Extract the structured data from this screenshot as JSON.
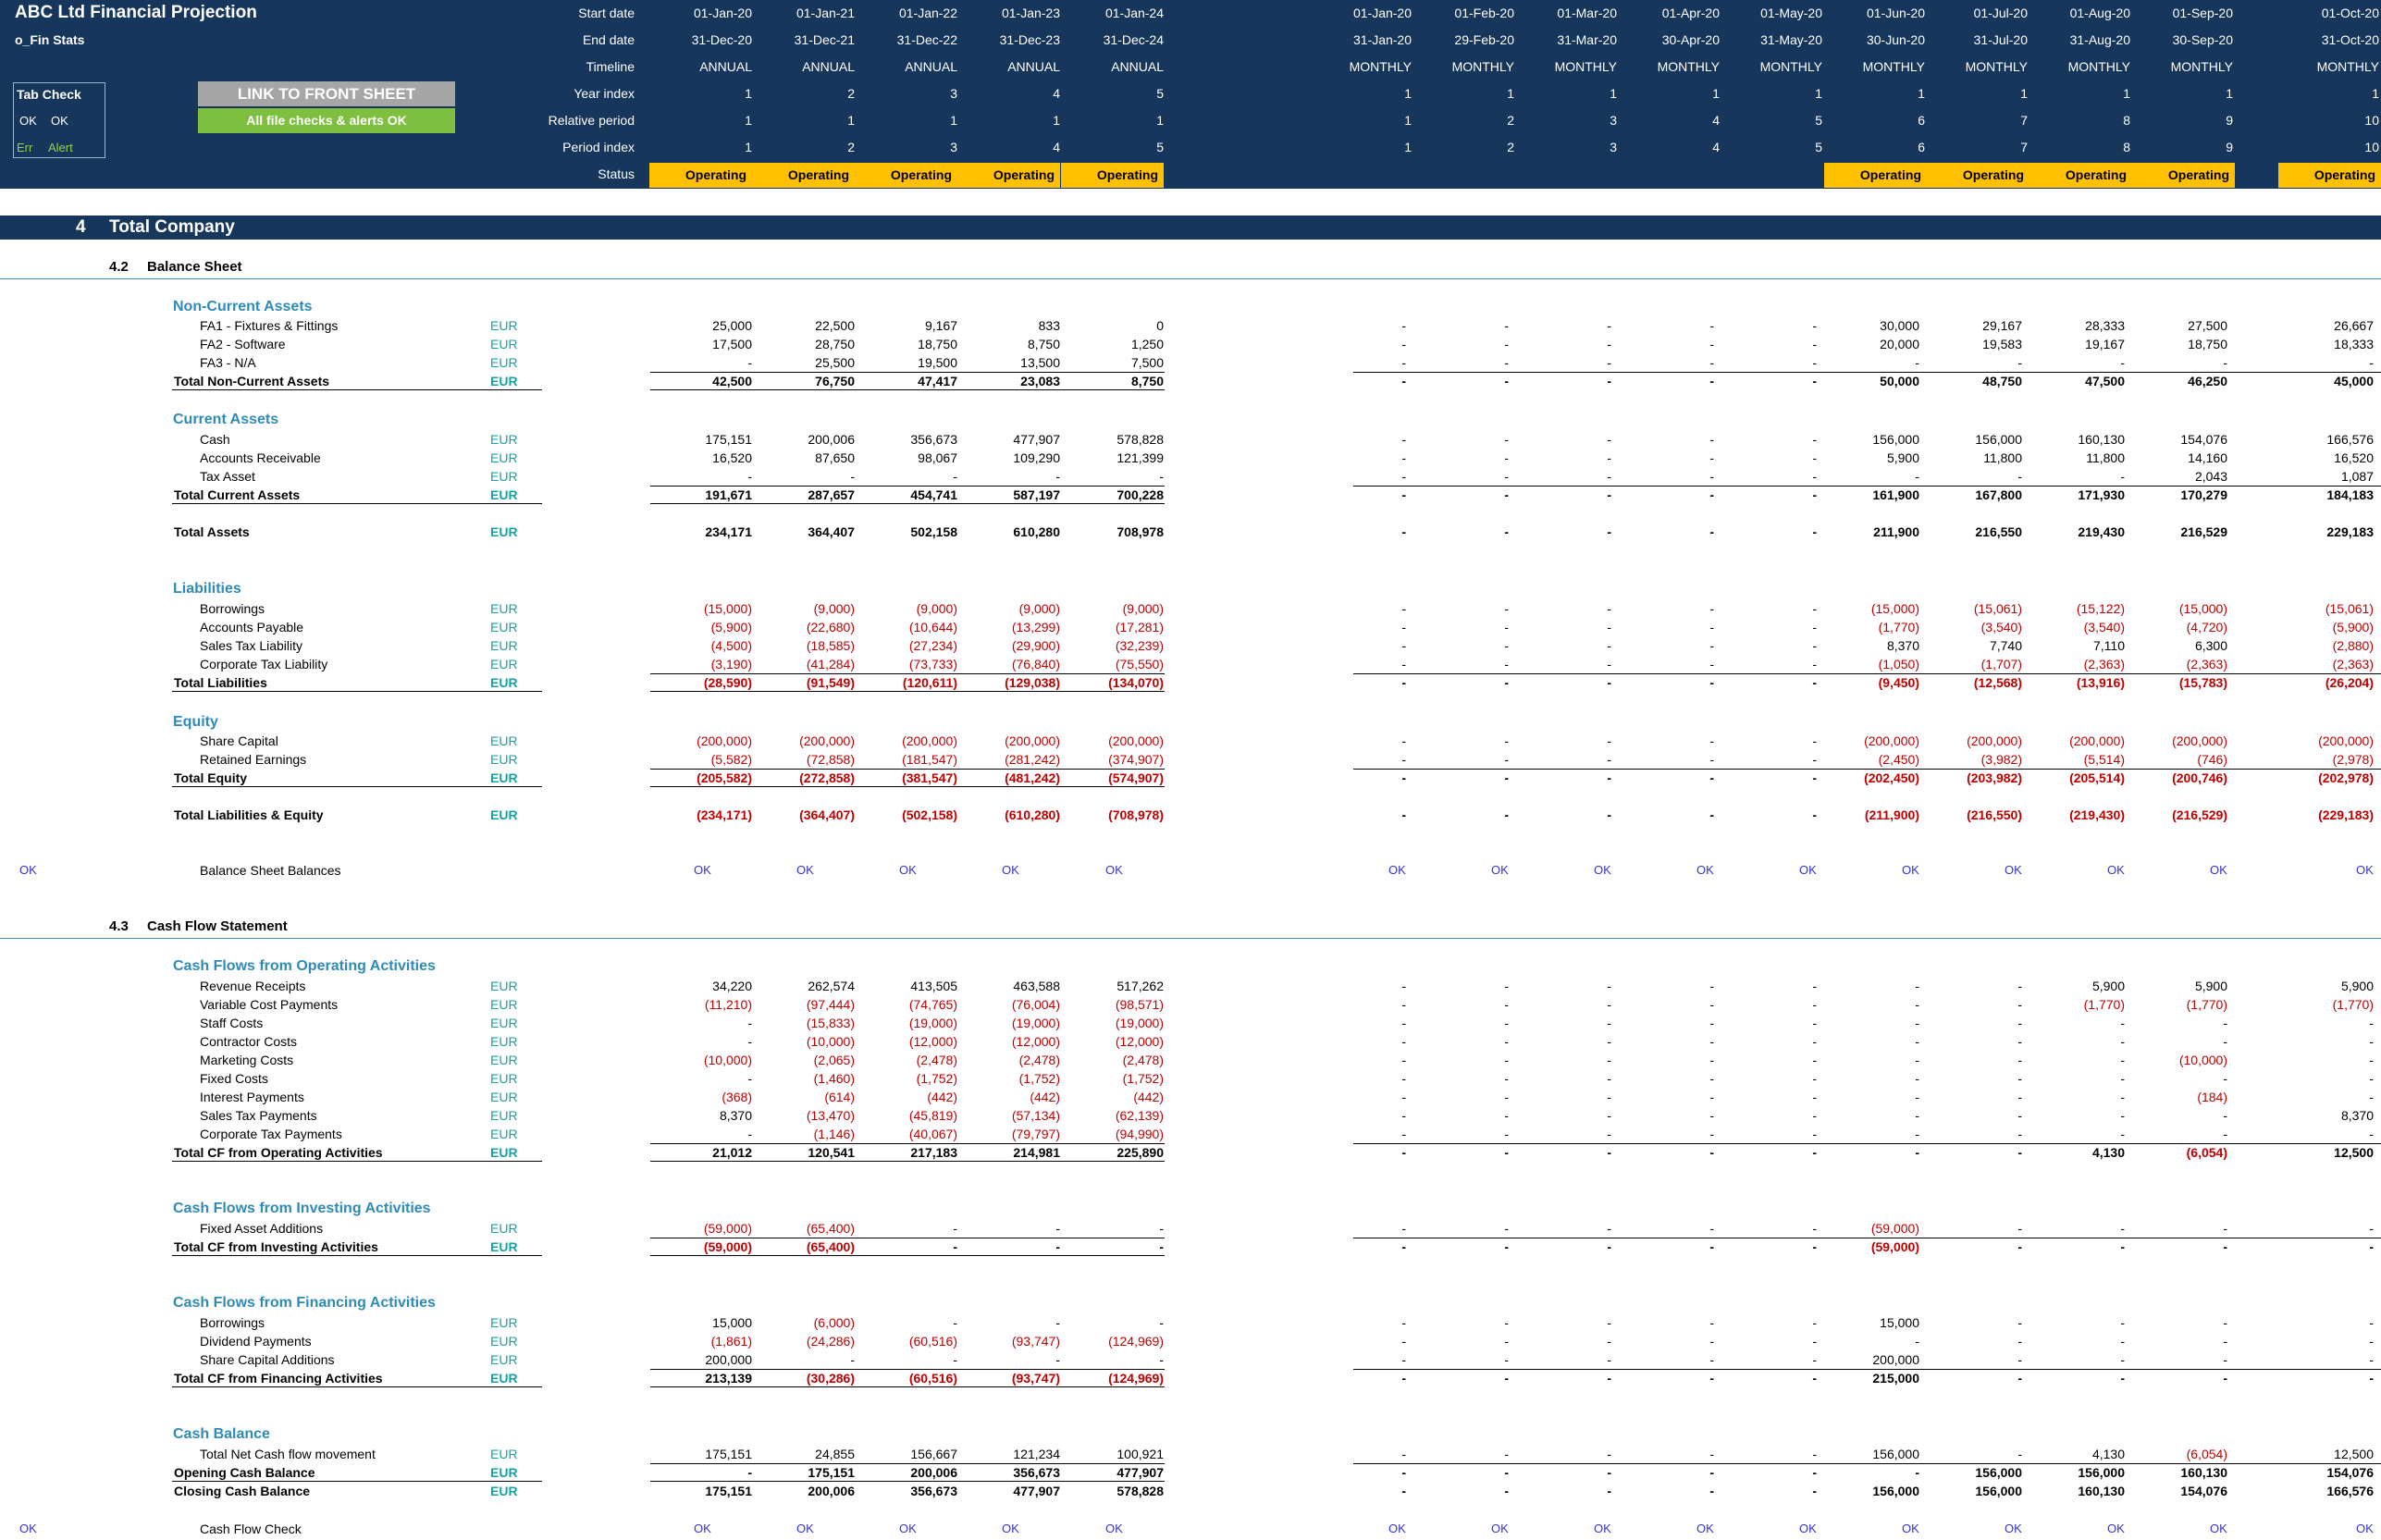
{
  "header": {
    "title": "ABC Ltd Financial Projection",
    "sheet": "o_Fin Stats",
    "labels": [
      "Start date",
      "End date",
      "Timeline",
      "Year index",
      "Relative period",
      "Period index",
      "Status"
    ],
    "annual": {
      "start": [
        "01-Jan-20",
        "01-Jan-21",
        "01-Jan-22",
        "01-Jan-23",
        "01-Jan-24"
      ],
      "end": [
        "31-Dec-20",
        "31-Dec-21",
        "31-Dec-22",
        "31-Dec-23",
        "31-Dec-24"
      ],
      "timeline": [
        "ANNUAL",
        "ANNUAL",
        "ANNUAL",
        "ANNUAL",
        "ANNUAL"
      ],
      "year_index": [
        "1",
        "2",
        "3",
        "4",
        "5"
      ],
      "relative_period": [
        "1",
        "1",
        "1",
        "1",
        "1"
      ],
      "period_index": [
        "1",
        "2",
        "3",
        "4",
        "5"
      ],
      "status": [
        "Operating",
        "Operating",
        "Operating",
        "Operating",
        "Operating"
      ]
    },
    "monthly": {
      "start": [
        "01-Jan-20",
        "01-Feb-20",
        "01-Mar-20",
        "01-Apr-20",
        "01-May-20",
        "01-Jun-20",
        "01-Jul-20",
        "01-Aug-20",
        "01-Sep-20",
        "01-Oct-20"
      ],
      "end": [
        "31-Jan-20",
        "29-Feb-20",
        "31-Mar-20",
        "30-Apr-20",
        "31-May-20",
        "30-Jun-20",
        "31-Jul-20",
        "31-Aug-20",
        "30-Sep-20",
        "31-Oct-20"
      ],
      "timeline": [
        "MONTHLY",
        "MONTHLY",
        "MONTHLY",
        "MONTHLY",
        "MONTHLY",
        "MONTHLY",
        "MONTHLY",
        "MONTHLY",
        "MONTHLY",
        "MONTHLY"
      ],
      "year_index": [
        "1",
        "1",
        "1",
        "1",
        "1",
        "1",
        "1",
        "1",
        "1",
        "1"
      ],
      "relative_period": [
        "1",
        "2",
        "3",
        "4",
        "5",
        "6",
        "7",
        "8",
        "9",
        "10"
      ],
      "period_index": [
        "1",
        "2",
        "3",
        "4",
        "5",
        "6",
        "7",
        "8",
        "9",
        "10"
      ],
      "status": [
        "",
        "",
        "",
        "",
        "",
        "Operating",
        "Operating",
        "Operating",
        "Operating",
        "Operating"
      ]
    }
  },
  "tab_check": {
    "title": "Tab Check",
    "ok1": "OK",
    "ok2": "OK",
    "err": "Err",
    "alert": "Alert"
  },
  "buttons": {
    "front_sheet": "LINK TO FRONT SHEET",
    "file_checks": "All file checks & alerts OK"
  },
  "section": {
    "number": "4",
    "title": "Total Company"
  },
  "balance_sheet": {
    "number": "4.2",
    "title": "Balance Sheet",
    "groups": {
      "nca": "Non-Current Assets",
      "ca": "Current Assets",
      "liab": "Liabilities",
      "equity": "Equity"
    },
    "rows": [
      {
        "label": "FA1 - Fixtures & Fittings",
        "unit": "EUR",
        "a": [
          "25,000",
          "22,500",
          "9,167",
          "833",
          "0"
        ],
        "m": [
          "-",
          "-",
          "-",
          "-",
          "-",
          "30,000",
          "29,167",
          "28,333",
          "27,500",
          "26,667"
        ]
      },
      {
        "label": "FA2 - Software",
        "unit": "EUR",
        "a": [
          "17,500",
          "28,750",
          "18,750",
          "8,750",
          "1,250"
        ],
        "m": [
          "-",
          "-",
          "-",
          "-",
          "-",
          "20,000",
          "19,583",
          "19,167",
          "18,750",
          "18,333"
        ]
      },
      {
        "label": "FA3 - N/A",
        "unit": "EUR",
        "a": [
          "-",
          "25,500",
          "19,500",
          "13,500",
          "7,500"
        ],
        "m": [
          "-",
          "-",
          "-",
          "-",
          "-",
          "-",
          "-",
          "-",
          "-",
          "-"
        ]
      },
      {
        "label": "Total Non-Current Assets",
        "unit": "EUR",
        "a": [
          "42,500",
          "76,750",
          "47,417",
          "23,083",
          "8,750"
        ],
        "m": [
          "-",
          "-",
          "-",
          "-",
          "-",
          "50,000",
          "48,750",
          "47,500",
          "46,250",
          "45,000"
        ]
      },
      {
        "label": "Cash",
        "unit": "EUR",
        "a": [
          "175,151",
          "200,006",
          "356,673",
          "477,907",
          "578,828"
        ],
        "m": [
          "-",
          "-",
          "-",
          "-",
          "-",
          "156,000",
          "156,000",
          "160,130",
          "154,076",
          "166,576"
        ]
      },
      {
        "label": "Accounts Receivable",
        "unit": "EUR",
        "a": [
          "16,520",
          "87,650",
          "98,067",
          "109,290",
          "121,399"
        ],
        "m": [
          "-",
          "-",
          "-",
          "-",
          "-",
          "5,900",
          "11,800",
          "11,800",
          "14,160",
          "16,520"
        ]
      },
      {
        "label": "Tax Asset",
        "unit": "EUR",
        "a": [
          "-",
          "-",
          "-",
          "-",
          "-"
        ],
        "m": [
          "-",
          "-",
          "-",
          "-",
          "-",
          "-",
          "-",
          "-",
          "2,043",
          "1,087"
        ]
      },
      {
        "label": "Total Current Assets",
        "unit": "EUR",
        "a": [
          "191,671",
          "287,657",
          "454,741",
          "587,197",
          "700,228"
        ],
        "m": [
          "-",
          "-",
          "-",
          "-",
          "-",
          "161,900",
          "167,800",
          "171,930",
          "170,279",
          "184,183"
        ]
      },
      {
        "label": "Total Assets",
        "unit": "EUR",
        "a": [
          "234,171",
          "364,407",
          "502,158",
          "610,280",
          "708,978"
        ],
        "m": [
          "-",
          "-",
          "-",
          "-",
          "-",
          "211,900",
          "216,550",
          "219,430",
          "216,529",
          "229,183"
        ]
      },
      {
        "label": "Borrowings",
        "unit": "EUR",
        "a": [
          "(15,000)",
          "(9,000)",
          "(9,000)",
          "(9,000)",
          "(9,000)"
        ],
        "m": [
          "-",
          "-",
          "-",
          "-",
          "-",
          "(15,000)",
          "(15,061)",
          "(15,122)",
          "(15,000)",
          "(15,061)"
        ]
      },
      {
        "label": "Accounts Payable",
        "unit": "EUR",
        "a": [
          "(5,900)",
          "(22,680)",
          "(10,644)",
          "(13,299)",
          "(17,281)"
        ],
        "m": [
          "-",
          "-",
          "-",
          "-",
          "-",
          "(1,770)",
          "(3,540)",
          "(3,540)",
          "(4,720)",
          "(5,900)"
        ]
      },
      {
        "label": "Sales Tax Liability",
        "unit": "EUR",
        "a": [
          "(4,500)",
          "(18,585)",
          "(27,234)",
          "(29,900)",
          "(32,239)"
        ],
        "m": [
          "-",
          "-",
          "-",
          "-",
          "-",
          "8,370",
          "7,740",
          "7,110",
          "6,300",
          "(2,880)"
        ]
      },
      {
        "label": "Corporate Tax Liability",
        "unit": "EUR",
        "a": [
          "(3,190)",
          "(41,284)",
          "(73,733)",
          "(76,840)",
          "(75,550)"
        ],
        "m": [
          "-",
          "-",
          "-",
          "-",
          "-",
          "(1,050)",
          "(1,707)",
          "(2,363)",
          "(2,363)",
          "(2,363)"
        ]
      },
      {
        "label": "Total Liabilities",
        "unit": "EUR",
        "a": [
          "(28,590)",
          "(91,549)",
          "(120,611)",
          "(129,038)",
          "(134,070)"
        ],
        "m": [
          "-",
          "-",
          "-",
          "-",
          "-",
          "(9,450)",
          "(12,568)",
          "(13,916)",
          "(15,783)",
          "(26,204)"
        ]
      },
      {
        "label": "Share Capital",
        "unit": "EUR",
        "a": [
          "(200,000)",
          "(200,000)",
          "(200,000)",
          "(200,000)",
          "(200,000)"
        ],
        "m": [
          "-",
          "-",
          "-",
          "-",
          "-",
          "(200,000)",
          "(200,000)",
          "(200,000)",
          "(200,000)",
          "(200,000)"
        ]
      },
      {
        "label": "Retained Earnings",
        "unit": "EUR",
        "a": [
          "(5,582)",
          "(72,858)",
          "(181,547)",
          "(281,242)",
          "(374,907)"
        ],
        "m": [
          "-",
          "-",
          "-",
          "-",
          "-",
          "(2,450)",
          "(3,982)",
          "(5,514)",
          "(746)",
          "(2,978)"
        ]
      },
      {
        "label": "Total Equity",
        "unit": "EUR",
        "a": [
          "(205,582)",
          "(272,858)",
          "(381,547)",
          "(481,242)",
          "(574,907)"
        ],
        "m": [
          "-",
          "-",
          "-",
          "-",
          "-",
          "(202,450)",
          "(203,982)",
          "(205,514)",
          "(200,746)",
          "(202,978)"
        ]
      },
      {
        "label": "Total Liabilities & Equity",
        "unit": "EUR",
        "a": [
          "(234,171)",
          "(364,407)",
          "(502,158)",
          "(610,280)",
          "(708,978)"
        ],
        "m": [
          "-",
          "-",
          "-",
          "-",
          "-",
          "(211,900)",
          "(216,550)",
          "(219,430)",
          "(216,529)",
          "(229,183)"
        ]
      }
    ],
    "check": {
      "flag": "OK",
      "label": "Balance Sheet Balances",
      "a": [
        "OK",
        "OK",
        "OK",
        "OK",
        "OK"
      ],
      "m": [
        "OK",
        "OK",
        "OK",
        "OK",
        "OK",
        "OK",
        "OK",
        "OK",
        "OK",
        "OK"
      ]
    }
  },
  "cash_flow": {
    "number": "4.3",
    "title": "Cash Flow Statement",
    "groups": {
      "op": "Cash Flows from Operating Activities",
      "inv": "Cash Flows from Investing Activities",
      "fin": "Cash Flows from Financing Activities",
      "bal": "Cash Balance"
    },
    "rows": [
      {
        "label": "Revenue Receipts",
        "unit": "EUR",
        "a": [
          "34,220",
          "262,574",
          "413,505",
          "463,588",
          "517,262"
        ],
        "m": [
          "-",
          "-",
          "-",
          "-",
          "-",
          "-",
          "-",
          "5,900",
          "5,900",
          "5,900"
        ]
      },
      {
        "label": "Variable Cost Payments",
        "unit": "EUR",
        "a": [
          "(11,210)",
          "(97,444)",
          "(74,765)",
          "(76,004)",
          "(98,571)"
        ],
        "m": [
          "-",
          "-",
          "-",
          "-",
          "-",
          "-",
          "-",
          "(1,770)",
          "(1,770)",
          "(1,770)"
        ]
      },
      {
        "label": "Staff Costs",
        "unit": "EUR",
        "a": [
          "-",
          "(15,833)",
          "(19,000)",
          "(19,000)",
          "(19,000)"
        ],
        "m": [
          "-",
          "-",
          "-",
          "-",
          "-",
          "-",
          "-",
          "-",
          "-",
          "-"
        ]
      },
      {
        "label": "Contractor Costs",
        "unit": "EUR",
        "a": [
          "-",
          "(10,000)",
          "(12,000)",
          "(12,000)",
          "(12,000)"
        ],
        "m": [
          "-",
          "-",
          "-",
          "-",
          "-",
          "-",
          "-",
          "-",
          "-",
          "-"
        ]
      },
      {
        "label": "Marketing Costs",
        "unit": "EUR",
        "a": [
          "(10,000)",
          "(2,065)",
          "(2,478)",
          "(2,478)",
          "(2,478)"
        ],
        "m": [
          "-",
          "-",
          "-",
          "-",
          "-",
          "-",
          "-",
          "-",
          "(10,000)",
          "-"
        ]
      },
      {
        "label": "Fixed Costs",
        "unit": "EUR",
        "a": [
          "-",
          "(1,460)",
          "(1,752)",
          "(1,752)",
          "(1,752)"
        ],
        "m": [
          "-",
          "-",
          "-",
          "-",
          "-",
          "-",
          "-",
          "-",
          "-",
          "-"
        ]
      },
      {
        "label": "Interest Payments",
        "unit": "EUR",
        "a": [
          "(368)",
          "(614)",
          "(442)",
          "(442)",
          "(442)"
        ],
        "m": [
          "-",
          "-",
          "-",
          "-",
          "-",
          "-",
          "-",
          "-",
          "(184)",
          "-"
        ]
      },
      {
        "label": "Sales Tax Payments",
        "unit": "EUR",
        "a": [
          "8,370",
          "(13,470)",
          "(45,819)",
          "(57,134)",
          "(62,139)"
        ],
        "m": [
          "-",
          "-",
          "-",
          "-",
          "-",
          "-",
          "-",
          "-",
          "-",
          "8,370"
        ]
      },
      {
        "label": "Corporate Tax Payments",
        "unit": "EUR",
        "a": [
          "-",
          "(1,146)",
          "(40,067)",
          "(79,797)",
          "(94,990)"
        ],
        "m": [
          "-",
          "-",
          "-",
          "-",
          "-",
          "-",
          "-",
          "-",
          "-",
          "-"
        ]
      },
      {
        "label": "Total CF from Operating Activities",
        "unit": "EUR",
        "a": [
          "21,012",
          "120,541",
          "217,183",
          "214,981",
          "225,890"
        ],
        "m": [
          "-",
          "-",
          "-",
          "-",
          "-",
          "-",
          "-",
          "4,130",
          "(6,054)",
          "12,500"
        ]
      },
      {
        "label": "Fixed Asset Additions",
        "unit": "EUR",
        "a": [
          "(59,000)",
          "(65,400)",
          "-",
          "-",
          "-"
        ],
        "m": [
          "-",
          "-",
          "-",
          "-",
          "-",
          "(59,000)",
          "-",
          "-",
          "-",
          "-"
        ]
      },
      {
        "label": "Total CF from Investing Activities",
        "unit": "EUR",
        "a": [
          "(59,000)",
          "(65,400)",
          "-",
          "-",
          "-"
        ],
        "m": [
          "-",
          "-",
          "-",
          "-",
          "-",
          "(59,000)",
          "-",
          "-",
          "-",
          "-"
        ]
      },
      {
        "label": "Borrowings",
        "unit": "EUR",
        "a": [
          "15,000",
          "(6,000)",
          "-",
          "-",
          "-"
        ],
        "m": [
          "-",
          "-",
          "-",
          "-",
          "-",
          "15,000",
          "-",
          "-",
          "-",
          "-"
        ]
      },
      {
        "label": "Dividend Payments",
        "unit": "EUR",
        "a": [
          "(1,861)",
          "(24,286)",
          "(60,516)",
          "(93,747)",
          "(124,969)"
        ],
        "m": [
          "-",
          "-",
          "-",
          "-",
          "-",
          "-",
          "-",
          "-",
          "-",
          "-"
        ]
      },
      {
        "label": "Share Capital Additions",
        "unit": "EUR",
        "a": [
          "200,000",
          "-",
          "-",
          "-",
          "-"
        ],
        "m": [
          "-",
          "-",
          "-",
          "-",
          "-",
          "200,000",
          "-",
          "-",
          "-",
          "-"
        ]
      },
      {
        "label": "Total CF from Financing Activities",
        "unit": "EUR",
        "a": [
          "213,139",
          "(30,286)",
          "(60,516)",
          "(93,747)",
          "(124,969)"
        ],
        "m": [
          "-",
          "-",
          "-",
          "-",
          "-",
          "215,000",
          "-",
          "-",
          "-",
          "-"
        ]
      },
      {
        "label": "Total Net Cash flow movement",
        "unit": "EUR",
        "a": [
          "175,151",
          "24,855",
          "156,667",
          "121,234",
          "100,921"
        ],
        "m": [
          "-",
          "-",
          "-",
          "-",
          "-",
          "156,000",
          "-",
          "4,130",
          "(6,054)",
          "12,500"
        ]
      },
      {
        "label": "Opening Cash Balance",
        "unit": "EUR",
        "a": [
          "-",
          "175,151",
          "200,006",
          "356,673",
          "477,907"
        ],
        "m": [
          "-",
          "-",
          "-",
          "-",
          "-",
          "-",
          "156,000",
          "156,000",
          "160,130",
          "154,076"
        ]
      },
      {
        "label": "Closing Cash Balance",
        "unit": "EUR",
        "a": [
          "175,151",
          "200,006",
          "356,673",
          "477,907",
          "578,828"
        ],
        "m": [
          "-",
          "-",
          "-",
          "-",
          "-",
          "156,000",
          "156,000",
          "160,130",
          "154,076",
          "166,576"
        ]
      }
    ],
    "check": {
      "flag": "OK",
      "label": "Cash Flow Check",
      "a": [
        "OK",
        "OK",
        "OK",
        "OK",
        "OK"
      ],
      "m": [
        "OK",
        "OK",
        "OK",
        "OK",
        "OK",
        "OK",
        "OK",
        "OK",
        "OK",
        "OK"
      ]
    }
  }
}
